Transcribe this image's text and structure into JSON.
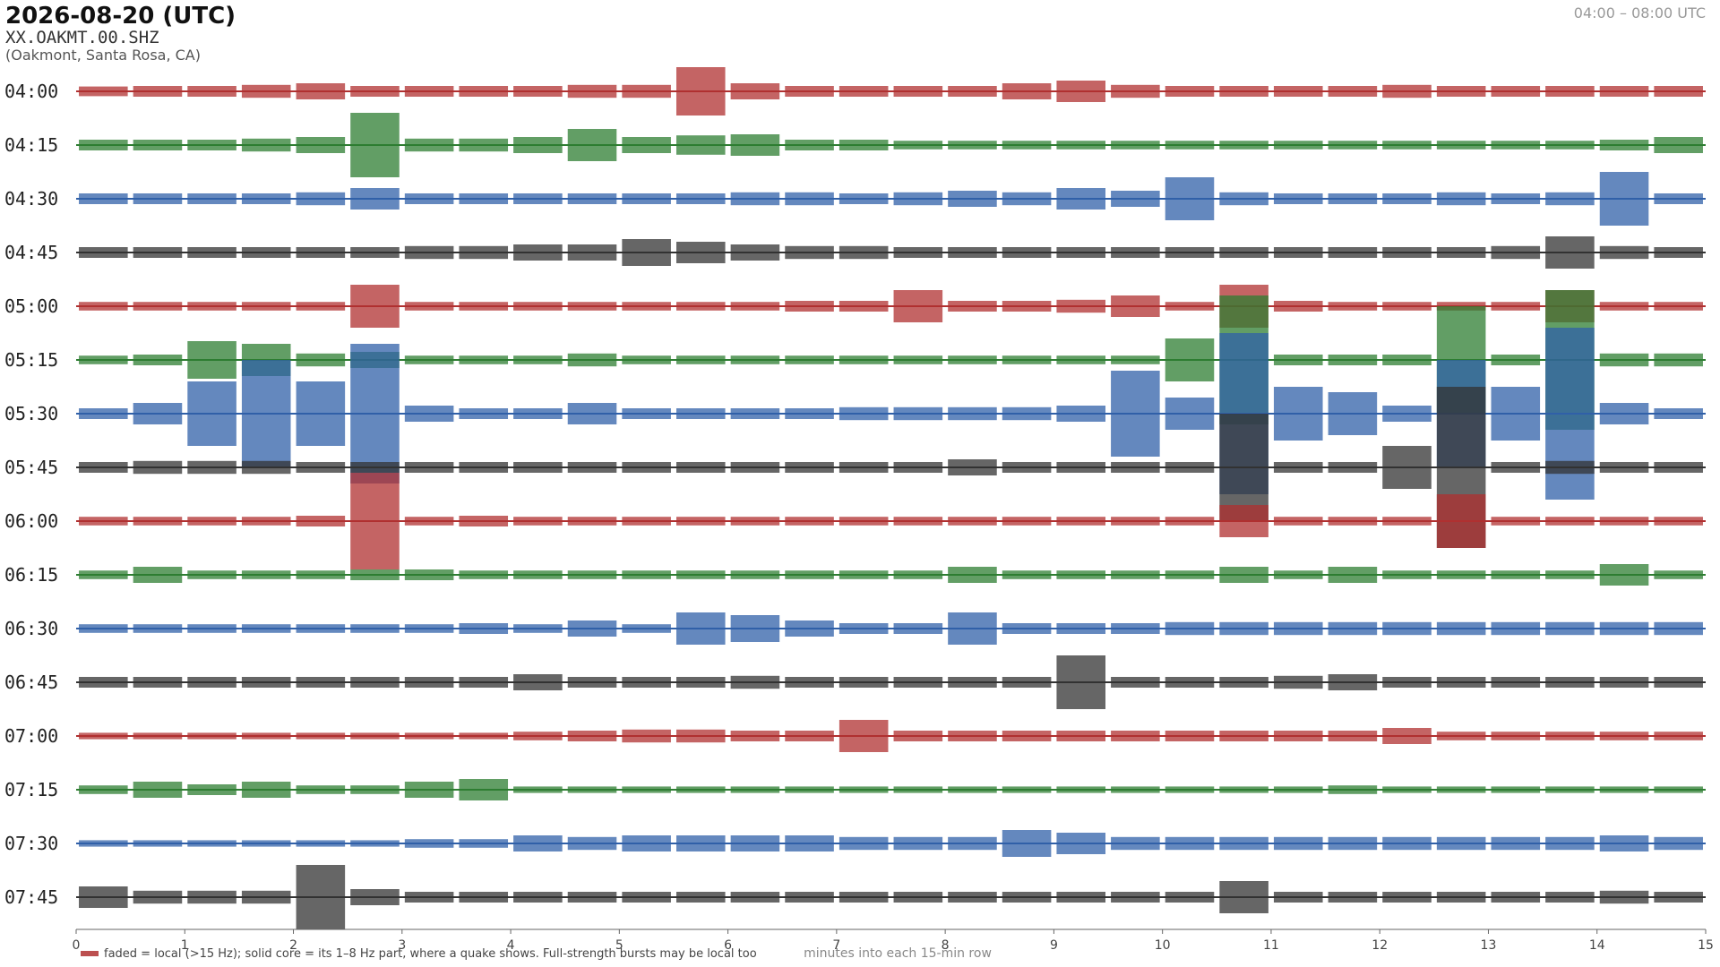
{
  "chart_data": {
    "type": "helicorder",
    "title": "2026-08-20  (UTC)",
    "subtitle": "XX.OAKMT.00.SHZ",
    "location": "(Oakmont, Santa Rosa, CA)",
    "time_range": "04:00 – 08:00 UTC",
    "x_label": "minutes into each 15-min row",
    "note": "faded = local (>15 Hz); solid core = its 1–8 Hz part, where a quake shows. Full-strength bursts may be local too",
    "note_color": "#b03030",
    "xlim": [
      0,
      15
    ],
    "xticks": [
      0,
      1,
      2,
      3,
      4,
      5,
      6,
      7,
      8,
      9,
      10,
      11,
      12,
      13,
      14,
      15
    ],
    "x": [
      0.25,
      0.75,
      1.25,
      1.75,
      2.25,
      2.75,
      3.25,
      3.75,
      4.25,
      4.75,
      5.25,
      5.75,
      6.25,
      6.75,
      7.25,
      7.75,
      8.25,
      8.75,
      9.25,
      9.75,
      10.25,
      10.75,
      11.25,
      11.75,
      12.25,
      12.75,
      13.25,
      13.75,
      14.25,
      14.75
    ],
    "series": [
      {
        "name": "04:00",
        "color": "#b03030",
        "values": [
          0.09,
          0.1,
          0.1,
          0.12,
          0.15,
          0.1,
          0.1,
          0.1,
          0.1,
          0.12,
          0.12,
          0.45,
          0.15,
          0.1,
          0.1,
          0.1,
          0.1,
          0.15,
          0.2,
          0.12,
          0.1,
          0.1,
          0.1,
          0.1,
          0.12,
          0.1,
          0.1,
          0.1,
          0.1,
          0.1
        ]
      },
      {
        "name": "04:15",
        "color": "#2e7d32",
        "values": [
          0.1,
          0.1,
          0.1,
          0.12,
          0.15,
          0.6,
          0.12,
          0.12,
          0.15,
          0.3,
          0.15,
          0.18,
          0.2,
          0.1,
          0.1,
          0.08,
          0.08,
          0.08,
          0.08,
          0.08,
          0.08,
          0.08,
          0.08,
          0.08,
          0.08,
          0.08,
          0.08,
          0.08,
          0.1,
          0.15
        ]
      },
      {
        "name": "04:30",
        "color": "#3060a8",
        "values": [
          0.1,
          0.1,
          0.1,
          0.1,
          0.12,
          0.2,
          0.1,
          0.1,
          0.1,
          0.1,
          0.1,
          0.1,
          0.12,
          0.12,
          0.1,
          0.12,
          0.15,
          0.12,
          0.2,
          0.15,
          0.4,
          0.12,
          0.1,
          0.1,
          0.1,
          0.12,
          0.1,
          0.12,
          0.5,
          0.1
        ]
      },
      {
        "name": "04:45",
        "color": "#333333",
        "values": [
          0.1,
          0.1,
          0.1,
          0.1,
          0.1,
          0.1,
          0.12,
          0.12,
          0.15,
          0.15,
          0.25,
          0.2,
          0.15,
          0.12,
          0.12,
          0.1,
          0.1,
          0.1,
          0.1,
          0.1,
          0.1,
          0.1,
          0.1,
          0.1,
          0.1,
          0.1,
          0.12,
          0.3,
          0.12,
          0.1
        ]
      },
      {
        "name": "05:00",
        "color": "#b03030",
        "values": [
          0.08,
          0.08,
          0.08,
          0.08,
          0.08,
          0.4,
          0.08,
          0.08,
          0.08,
          0.08,
          0.08,
          0.08,
          0.08,
          0.1,
          0.1,
          0.3,
          0.1,
          0.1,
          0.12,
          0.2,
          0.08,
          0.4,
          0.1,
          0.08,
          0.08,
          0.08,
          0.08,
          0.3,
          0.08,
          0.08
        ]
      },
      {
        "name": "05:15",
        "color": "#2e7d32",
        "values": [
          0.08,
          0.1,
          0.35,
          0.3,
          0.12,
          0.15,
          0.08,
          0.08,
          0.08,
          0.12,
          0.08,
          0.08,
          0.08,
          0.08,
          0.08,
          0.08,
          0.08,
          0.08,
          0.08,
          0.08,
          0.4,
          1.2,
          0.1,
          0.1,
          0.1,
          1.0,
          0.1,
          1.3,
          0.12,
          0.12
        ]
      },
      {
        "name": "05:30",
        "color": "#3060a8",
        "values": [
          0.1,
          0.2,
          0.6,
          1.0,
          0.6,
          1.3,
          0.15,
          0.1,
          0.1,
          0.2,
          0.1,
          0.1,
          0.1,
          0.1,
          0.12,
          0.12,
          0.12,
          0.12,
          0.15,
          0.8,
          0.3,
          1.5,
          0.5,
          0.4,
          0.15,
          1.0,
          0.5,
          1.6,
          0.2,
          0.1
        ]
      },
      {
        "name": "05:45",
        "color": "#333333",
        "values": [
          0.1,
          0.12,
          0.12,
          0.12,
          0.1,
          0.1,
          0.1,
          0.1,
          0.1,
          0.1,
          0.1,
          0.1,
          0.1,
          0.1,
          0.1,
          0.1,
          0.15,
          0.1,
          0.1,
          0.1,
          0.1,
          1.0,
          0.1,
          0.1,
          0.4,
          1.5,
          0.1,
          0.12,
          0.1,
          0.1
        ]
      },
      {
        "name": "06:00",
        "color": "#b03030",
        "values": [
          0.08,
          0.08,
          0.08,
          0.08,
          0.1,
          0.9,
          0.08,
          0.1,
          0.08,
          0.08,
          0.08,
          0.08,
          0.08,
          0.08,
          0.08,
          0.08,
          0.08,
          0.08,
          0.08,
          0.08,
          0.08,
          0.3,
          0.08,
          0.08,
          0.08,
          0.5,
          0.08,
          0.08,
          0.08,
          0.08
        ]
      },
      {
        "name": "06:15",
        "color": "#2e7d32",
        "values": [
          0.08,
          0.15,
          0.08,
          0.08,
          0.08,
          0.1,
          0.1,
          0.08,
          0.08,
          0.08,
          0.08,
          0.08,
          0.08,
          0.08,
          0.08,
          0.08,
          0.15,
          0.08,
          0.08,
          0.08,
          0.08,
          0.15,
          0.08,
          0.15,
          0.08,
          0.08,
          0.08,
          0.08,
          0.2,
          0.08
        ]
      },
      {
        "name": "06:30",
        "color": "#3060a8",
        "values": [
          0.08,
          0.08,
          0.08,
          0.08,
          0.08,
          0.08,
          0.08,
          0.1,
          0.08,
          0.15,
          0.08,
          0.3,
          0.25,
          0.15,
          0.1,
          0.1,
          0.3,
          0.1,
          0.1,
          0.1,
          0.12,
          0.12,
          0.12,
          0.12,
          0.12,
          0.12,
          0.12,
          0.12,
          0.12,
          0.12
        ]
      },
      {
        "name": "06:45",
        "color": "#333333",
        "values": [
          0.1,
          0.1,
          0.1,
          0.1,
          0.1,
          0.1,
          0.1,
          0.1,
          0.15,
          0.1,
          0.1,
          0.1,
          0.12,
          0.1,
          0.1,
          0.1,
          0.1,
          0.1,
          0.5,
          0.1,
          0.1,
          0.1,
          0.12,
          0.15,
          0.1,
          0.1,
          0.1,
          0.1,
          0.1,
          0.1
        ]
      },
      {
        "name": "07:00",
        "color": "#b03030",
        "values": [
          0.06,
          0.06,
          0.06,
          0.06,
          0.06,
          0.06,
          0.06,
          0.06,
          0.08,
          0.1,
          0.12,
          0.12,
          0.1,
          0.1,
          0.3,
          0.1,
          0.1,
          0.1,
          0.1,
          0.1,
          0.1,
          0.1,
          0.1,
          0.1,
          0.15,
          0.08,
          0.08,
          0.08,
          0.08,
          0.08
        ]
      },
      {
        "name": "07:15",
        "color": "#2e7d32",
        "values": [
          0.08,
          0.15,
          0.1,
          0.15,
          0.08,
          0.08,
          0.15,
          0.2,
          0.06,
          0.06,
          0.06,
          0.06,
          0.06,
          0.06,
          0.06,
          0.06,
          0.06,
          0.06,
          0.06,
          0.06,
          0.06,
          0.06,
          0.06,
          0.08,
          0.06,
          0.06,
          0.06,
          0.06,
          0.06,
          0.06
        ]
      },
      {
        "name": "07:30",
        "color": "#3060a8",
        "values": [
          0.06,
          0.06,
          0.06,
          0.06,
          0.06,
          0.06,
          0.08,
          0.08,
          0.15,
          0.12,
          0.15,
          0.15,
          0.15,
          0.15,
          0.12,
          0.12,
          0.12,
          0.25,
          0.2,
          0.12,
          0.12,
          0.12,
          0.12,
          0.12,
          0.12,
          0.12,
          0.12,
          0.12,
          0.15,
          0.12
        ]
      },
      {
        "name": "07:45",
        "color": "#333333",
        "values": [
          0.2,
          0.12,
          0.12,
          0.12,
          0.6,
          0.15,
          0.1,
          0.1,
          0.1,
          0.1,
          0.1,
          0.1,
          0.1,
          0.1,
          0.1,
          0.1,
          0.1,
          0.1,
          0.1,
          0.1,
          0.1,
          0.3,
          0.1,
          0.1,
          0.1,
          0.1,
          0.1,
          0.1,
          0.12,
          0.1
        ]
      }
    ]
  }
}
